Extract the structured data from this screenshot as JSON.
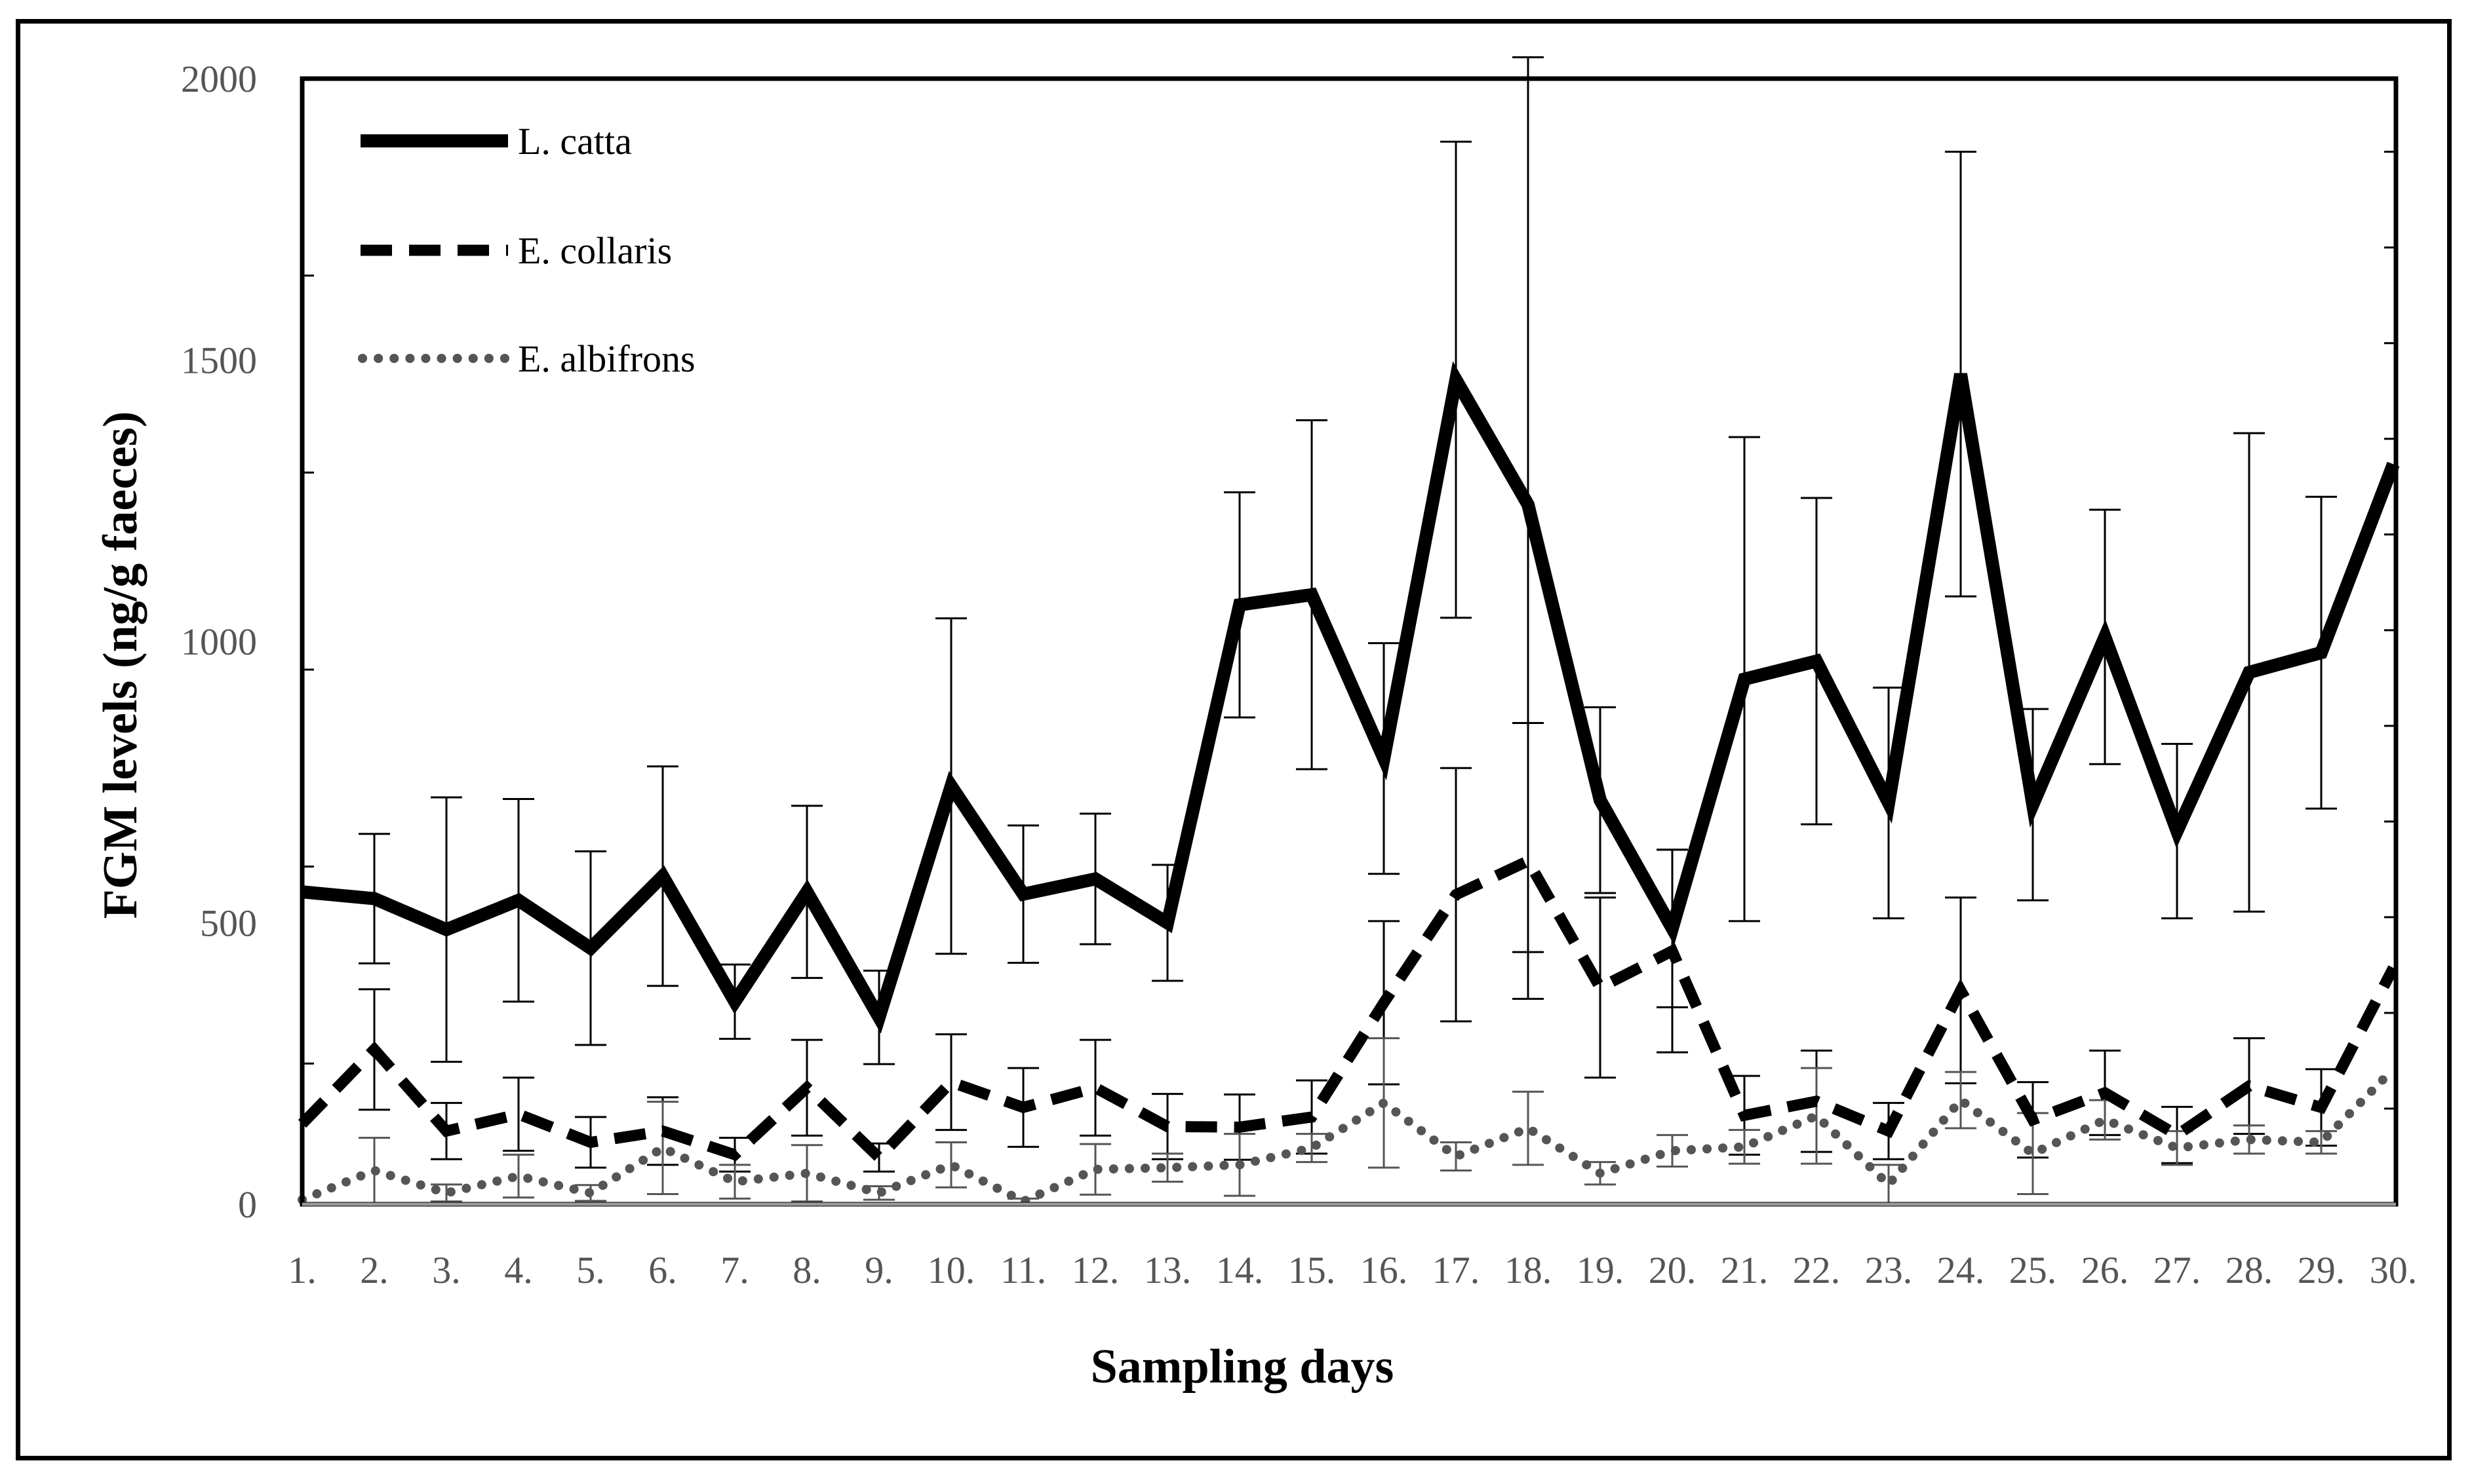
{
  "chart_data": {
    "type": "line",
    "title": "",
    "xlabel": "Sampling days",
    "ylabel": "FGM levels (ng/g faeces)",
    "ylim": [
      0,
      2000
    ],
    "yticks": [
      0,
      500,
      1000,
      1500,
      2000
    ],
    "grid": false,
    "legend_position": "top-left",
    "categories": [
      "1.",
      "2.",
      "3.",
      "4.",
      "5.",
      "6.",
      "7.",
      "8.",
      "9.",
      "10.",
      "11.",
      "12.",
      "13.",
      "14.",
      "15.",
      "16.",
      "17.",
      "18.",
      "19.",
      "20.",
      "21.",
      "22.",
      "23.",
      "24.",
      "25.",
      "26.",
      "27.",
      "28.",
      "29.",
      "30."
    ],
    "series": [
      {
        "name": "L. catta",
        "style": "solid",
        "color": "#000000",
        "values": [
          555,
          543,
          488,
          540,
          455,
          583,
          360,
          555,
          332,
          743,
          551,
          578,
          500,
          1065,
          1083,
          792,
          1465,
          1243,
          718,
          490,
          933,
          965,
          713,
          1475,
          710,
          1008,
          663,
          945,
          980,
          1315
        ],
        "error": [
          null,
          115,
          235,
          180,
          172,
          195,
          66,
          153,
          83,
          298,
          122,
          116,
          103,
          200,
          310,
          205,
          423,
          795,
          165,
          140,
          430,
          290,
          205,
          395,
          170,
          226,
          155,
          425,
          277,
          null
        ]
      },
      {
        "name": "E. collaris",
        "style": "dashed",
        "color": "#000000",
        "values": [
          143,
          275,
          130,
          160,
          110,
          130,
          88,
          207,
          83,
          217,
          172,
          207,
          138,
          137,
          155,
          358,
          550,
          610,
          385,
          450,
          158,
          183,
          130,
          380,
          150,
          198,
          123,
          210,
          172,
          420
        ],
        "error": [
          null,
          107,
          50,
          65,
          45,
          60,
          30,
          85,
          25,
          85,
          70,
          85,
          58,
          58,
          65,
          145,
          225,
          245,
          160,
          180,
          70,
          90,
          50,
          165,
          67,
          75,
          50,
          85,
          68,
          null
        ]
      },
      {
        "name": "E. albifrons",
        "style": "dotted",
        "color": "#555555",
        "values": [
          8,
          60,
          20,
          50,
          20,
          100,
          40,
          55,
          20,
          70,
          5,
          62,
          65,
          70,
          100,
          180,
          85,
          135,
          55,
          95,
          102,
          157,
          35,
          185,
          90,
          150,
          100,
          115,
          110,
          240
        ],
        "error": [
          null,
          58,
          15,
          38,
          14,
          82,
          30,
          50,
          12,
          40,
          5,
          45,
          25,
          55,
          25,
          115,
          25,
          65,
          20,
          28,
          30,
          85,
          35,
          50,
          72,
          35,
          30,
          25,
          20,
          null
        ]
      }
    ]
  }
}
